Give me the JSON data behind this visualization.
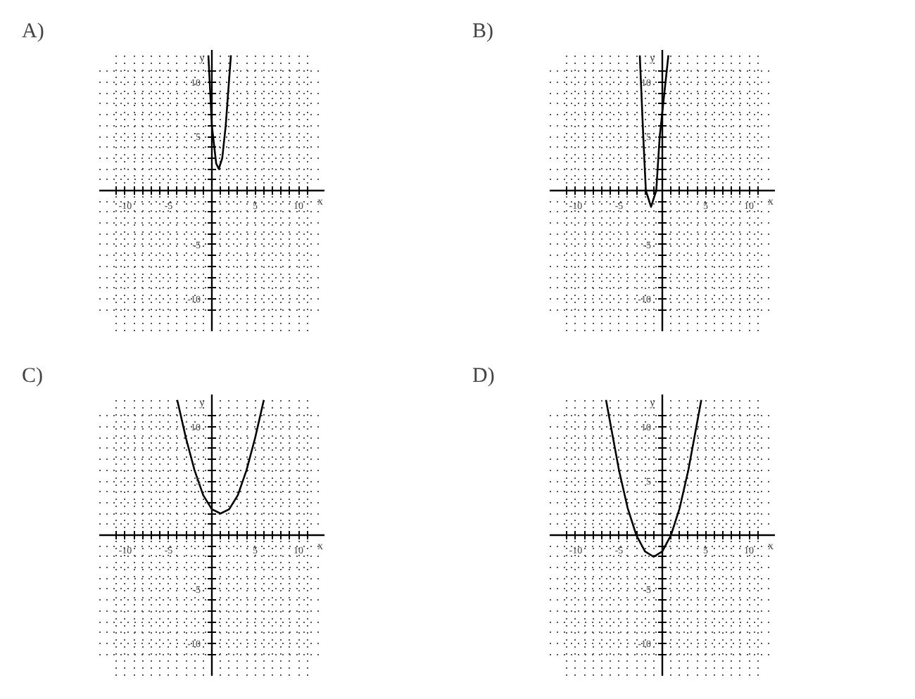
{
  "chart_data": [
    {
      "type": "line",
      "title": "A)",
      "xlabel": "x",
      "ylabel": "y",
      "x": [
        -0.4,
        0,
        0.5,
        0.8,
        1.2,
        1.6,
        2.2
      ],
      "series": [
        {
          "color": "#000000",
          "values": [
            12.5,
            6,
            2.5,
            2,
            3,
            6,
            12.5
          ]
        }
      ],
      "xlim": [
        -13,
        13
      ],
      "ylim": [
        -13,
        13
      ],
      "xticks": [
        {
          "value": -11,
          "label": null
        },
        -10,
        {
          "value": -9,
          "label": null
        },
        {
          "value": -8,
          "label": null
        },
        {
          "value": -7,
          "label": null
        },
        {
          "value": -6,
          "label": null
        },
        -5,
        {
          "value": -4,
          "label": null
        },
        {
          "value": -3,
          "label": null
        },
        {
          "value": -2,
          "label": null
        },
        {
          "value": -1,
          "label": null
        },
        {
          "value": 1,
          "label": null
        },
        {
          "value": 2,
          "label": null
        },
        {
          "value": 3,
          "label": null
        },
        {
          "value": 4,
          "label": null
        },
        5,
        {
          "value": 6,
          "label": null
        },
        {
          "value": 7,
          "label": null
        },
        {
          "value": 8,
          "label": null
        },
        {
          "value": 9,
          "label": null
        },
        10,
        {
          "value": 11,
          "label": null
        }
      ],
      "yticks": [
        {
          "value": -11,
          "label": null
        },
        -10,
        {
          "value": -9,
          "label": null
        },
        {
          "value": -8,
          "label": null
        },
        {
          "value": -7,
          "label": null
        },
        {
          "value": -6,
          "label": null
        },
        -5,
        {
          "value": -4,
          "label": null
        },
        {
          "value": -3,
          "label": null
        },
        {
          "value": -2,
          "label": null
        },
        {
          "value": -1,
          "label": null
        },
        {
          "value": 1,
          "label": null
        },
        {
          "value": 2,
          "label": null
        },
        {
          "value": 3,
          "label": null
        },
        {
          "value": 4,
          "label": null
        },
        5,
        {
          "value": 6,
          "label": null
        },
        {
          "value": 7,
          "label": null
        },
        {
          "value": 8,
          "label": null
        },
        {
          "value": 9,
          "label": null
        },
        10,
        {
          "value": 11,
          "label": null
        }
      ],
      "grid": true,
      "marker": "none",
      "line_style": "solid"
    },
    {
      "type": "line",
      "title": "B)",
      "xlabel": "x",
      "ylabel": "y",
      "x": [
        -2.6,
        -2.2,
        -1.9,
        -1.3,
        -0.7,
        -0.3,
        0.1,
        0.7
      ],
      "series": [
        {
          "color": "#000000",
          "values": [
            12.5,
            5,
            0,
            -1.5,
            0,
            5,
            8,
            12.5
          ]
        }
      ],
      "xlim": [
        -13,
        13
      ],
      "ylim": [
        -13,
        13
      ],
      "xticks": [
        {
          "value": -11,
          "label": null
        },
        -10,
        {
          "value": -9,
          "label": null
        },
        {
          "value": -8,
          "label": null
        },
        {
          "value": -7,
          "label": null
        },
        {
          "value": -6,
          "label": null
        },
        -5,
        {
          "value": -4,
          "label": null
        },
        {
          "value": -3,
          "label": null
        },
        {
          "value": -2,
          "label": null
        },
        {
          "value": -1,
          "label": null
        },
        {
          "value": 1,
          "label": null
        },
        {
          "value": 2,
          "label": null
        },
        {
          "value": 3,
          "label": null
        },
        {
          "value": 4,
          "label": null
        },
        5,
        {
          "value": 6,
          "label": null
        },
        {
          "value": 7,
          "label": null
        },
        {
          "value": 8,
          "label": null
        },
        {
          "value": 9,
          "label": null
        },
        10,
        {
          "value": 11,
          "label": null
        }
      ],
      "yticks": [
        {
          "value": -11,
          "label": null
        },
        -10,
        {
          "value": -9,
          "label": null
        },
        {
          "value": -8,
          "label": null
        },
        {
          "value": -7,
          "label": null
        },
        {
          "value": -6,
          "label": null
        },
        -5,
        {
          "value": -4,
          "label": null
        },
        {
          "value": -3,
          "label": null
        },
        {
          "value": -2,
          "label": null
        },
        {
          "value": -1,
          "label": null
        },
        {
          "value": 1,
          "label": null
        },
        {
          "value": 2,
          "label": null
        },
        {
          "value": 3,
          "label": null
        },
        {
          "value": 4,
          "label": null
        },
        5,
        {
          "value": 6,
          "label": null
        },
        {
          "value": 7,
          "label": null
        },
        {
          "value": 8,
          "label": null
        },
        {
          "value": 9,
          "label": null
        },
        10,
        {
          "value": 11,
          "label": null
        }
      ],
      "grid": true,
      "marker": "none",
      "line_style": "solid"
    },
    {
      "type": "line",
      "title": "C)",
      "xlabel": "x",
      "ylabel": "y",
      "x": [
        -4,
        -3,
        -2,
        -1,
        0,
        1,
        2,
        3,
        4,
        5,
        6
      ],
      "series": [
        {
          "color": "#000000",
          "values": [
            12.5,
            9,
            6,
            3.7,
            2.4,
            2,
            2.4,
            3.7,
            6,
            9,
            12.5
          ]
        }
      ],
      "xlim": [
        -13,
        13
      ],
      "ylim": [
        -13,
        13
      ],
      "xticks": [
        {
          "value": -11,
          "label": null
        },
        -10,
        {
          "value": -9,
          "label": null
        },
        {
          "value": -8,
          "label": null
        },
        {
          "value": -7,
          "label": null
        },
        {
          "value": -6,
          "label": null
        },
        -5,
        {
          "value": -4,
          "label": null
        },
        {
          "value": -3,
          "label": null
        },
        {
          "value": -2,
          "label": null
        },
        {
          "value": -1,
          "label": null
        },
        {
          "value": 1,
          "label": null
        },
        {
          "value": 2,
          "label": null
        },
        {
          "value": 3,
          "label": null
        },
        {
          "value": 4,
          "label": null
        },
        5,
        {
          "value": 6,
          "label": null
        },
        {
          "value": 7,
          "label": null
        },
        {
          "value": 8,
          "label": null
        },
        {
          "value": 9,
          "label": null
        },
        10,
        {
          "value": 11,
          "label": null
        }
      ],
      "yticks": [
        {
          "value": -11,
          "label": null
        },
        -10,
        {
          "value": -9,
          "label": null
        },
        {
          "value": -8,
          "label": null
        },
        {
          "value": -7,
          "label": null
        },
        {
          "value": -6,
          "label": null
        },
        -5,
        {
          "value": -4,
          "label": null
        },
        {
          "value": -3,
          "label": null
        },
        {
          "value": -2,
          "label": null
        },
        {
          "value": -1,
          "label": null
        },
        {
          "value": 1,
          "label": null
        },
        {
          "value": 2,
          "label": null
        },
        {
          "value": 3,
          "label": null
        },
        {
          "value": 4,
          "label": null
        },
        5,
        {
          "value": 6,
          "label": null
        },
        {
          "value": 7,
          "label": null
        },
        {
          "value": 8,
          "label": null
        },
        {
          "value": 9,
          "label": null
        },
        10,
        {
          "value": 11,
          "label": null
        }
      ],
      "grid": true,
      "marker": "none",
      "line_style": "solid"
    },
    {
      "type": "line",
      "title": "D)",
      "xlabel": "x",
      "ylabel": "y",
      "x": [
        -6.5,
        -5,
        -4,
        -3,
        -2,
        -1,
        0,
        1,
        2,
        3,
        4.5
      ],
      "series": [
        {
          "color": "#000000",
          "values": [
            12.5,
            6,
            2.5,
            0,
            -1.5,
            -2,
            -1.5,
            0,
            2.5,
            6,
            12.5
          ]
        }
      ],
      "xlim": [
        -13,
        13
      ],
      "ylim": [
        -13,
        13
      ],
      "xticks": [
        {
          "value": -11,
          "label": null
        },
        -10,
        {
          "value": -9,
          "label": null
        },
        {
          "value": -8,
          "label": null
        },
        {
          "value": -7,
          "label": null
        },
        {
          "value": -6,
          "label": null
        },
        -5,
        {
          "value": -4,
          "label": null
        },
        {
          "value": -3,
          "label": null
        },
        {
          "value": -2,
          "label": null
        },
        {
          "value": -1,
          "label": null
        },
        {
          "value": 1,
          "label": null
        },
        {
          "value": 2,
          "label": null
        },
        {
          "value": 3,
          "label": null
        },
        {
          "value": 4,
          "label": null
        },
        5,
        {
          "value": 6,
          "label": null
        },
        {
          "value": 7,
          "label": null
        },
        {
          "value": 8,
          "label": null
        },
        {
          "value": 9,
          "label": null
        },
        10,
        {
          "value": 11,
          "label": null
        }
      ],
      "yticks": [
        {
          "value": -11,
          "label": null
        },
        -10,
        {
          "value": -9,
          "label": null
        },
        {
          "value": -8,
          "label": null
        },
        {
          "value": -7,
          "label": null
        },
        {
          "value": -6,
          "label": null
        },
        -5,
        {
          "value": -4,
          "label": null
        },
        {
          "value": -3,
          "label": null
        },
        {
          "value": -2,
          "label": null
        },
        {
          "value": -1,
          "label": null
        },
        {
          "value": 1,
          "label": null
        },
        {
          "value": 2,
          "label": null
        },
        {
          "value": 3,
          "label": null
        },
        {
          "value": 4,
          "label": null
        },
        5,
        {
          "value": 6,
          "label": null
        },
        {
          "value": 7,
          "label": null
        },
        {
          "value": 8,
          "label": null
        },
        {
          "value": 9,
          "label": null
        },
        10,
        {
          "value": 11,
          "label": null
        }
      ],
      "grid": true,
      "marker": "none",
      "line_style": "solid"
    }
  ]
}
